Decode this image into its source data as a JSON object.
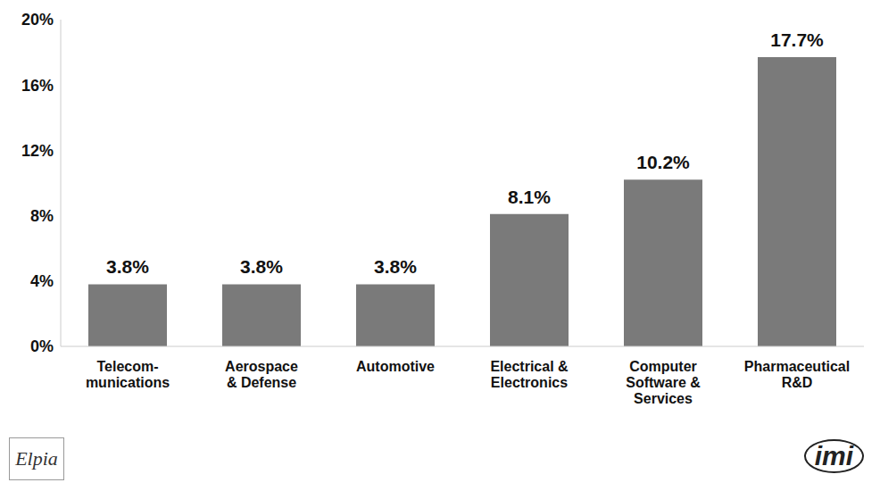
{
  "chart_data": {
    "type": "bar",
    "categories": [
      "Telecom-\nmunications",
      "Aerospace\n& Defense",
      "Automotive",
      "Electrical &\nElectronics",
      "Computer\nSoftware &\nServices",
      "Pharmaceutical\nR&D"
    ],
    "values": [
      3.8,
      3.8,
      3.8,
      8.1,
      10.2,
      17.7
    ],
    "value_labels": [
      "3.8%",
      "3.8%",
      "3.8%",
      "8.1%",
      "10.2%",
      "17.7%"
    ],
    "data_labels": true,
    "color": "#7a7a7a",
    "ylim": [
      0,
      20
    ],
    "yticks": [
      {
        "value": 0,
        "label": "0%"
      },
      {
        "value": 4,
        "label": "4%"
      },
      {
        "value": 8,
        "label": "8%"
      },
      {
        "value": 12,
        "label": "12%"
      },
      {
        "value": 16,
        "label": "16%"
      },
      {
        "value": 20,
        "label": "20%"
      }
    ],
    "grid": false,
    "annotations": [
      "Elpia",
      "imi"
    ]
  }
}
